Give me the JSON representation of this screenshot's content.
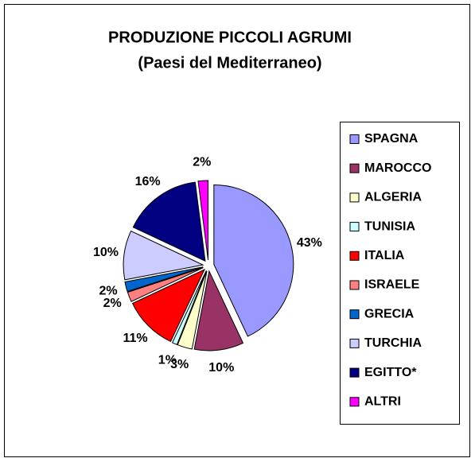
{
  "chart_data": {
    "type": "pie",
    "title": [
      "PRODUZIONE PICCOLI AGRUMI",
      "(Paesi del Mediterraneo)"
    ],
    "categories": [
      "SPAGNA",
      "MAROCCO",
      "ALGERIA",
      "TUNISIA",
      "ITALIA",
      "ISRAELE",
      "GRECIA",
      "TURCHIA",
      "EGITTO*",
      "ALTRI"
    ],
    "values": [
      43,
      10,
      3,
      1,
      11,
      2,
      2,
      10,
      16,
      2
    ],
    "value_labels": [
      "43%",
      "10%",
      "3%",
      "1%",
      "11%",
      "2%",
      "2%",
      "10%",
      "16%",
      "2%"
    ],
    "colors": [
      "#9999ff",
      "#993366",
      "#ffffcc",
      "#ccffff",
      "#ff0000",
      "#ff8080",
      "#0066cc",
      "#ccccff",
      "#000080",
      "#ff00ff"
    ],
    "legend": "right"
  }
}
